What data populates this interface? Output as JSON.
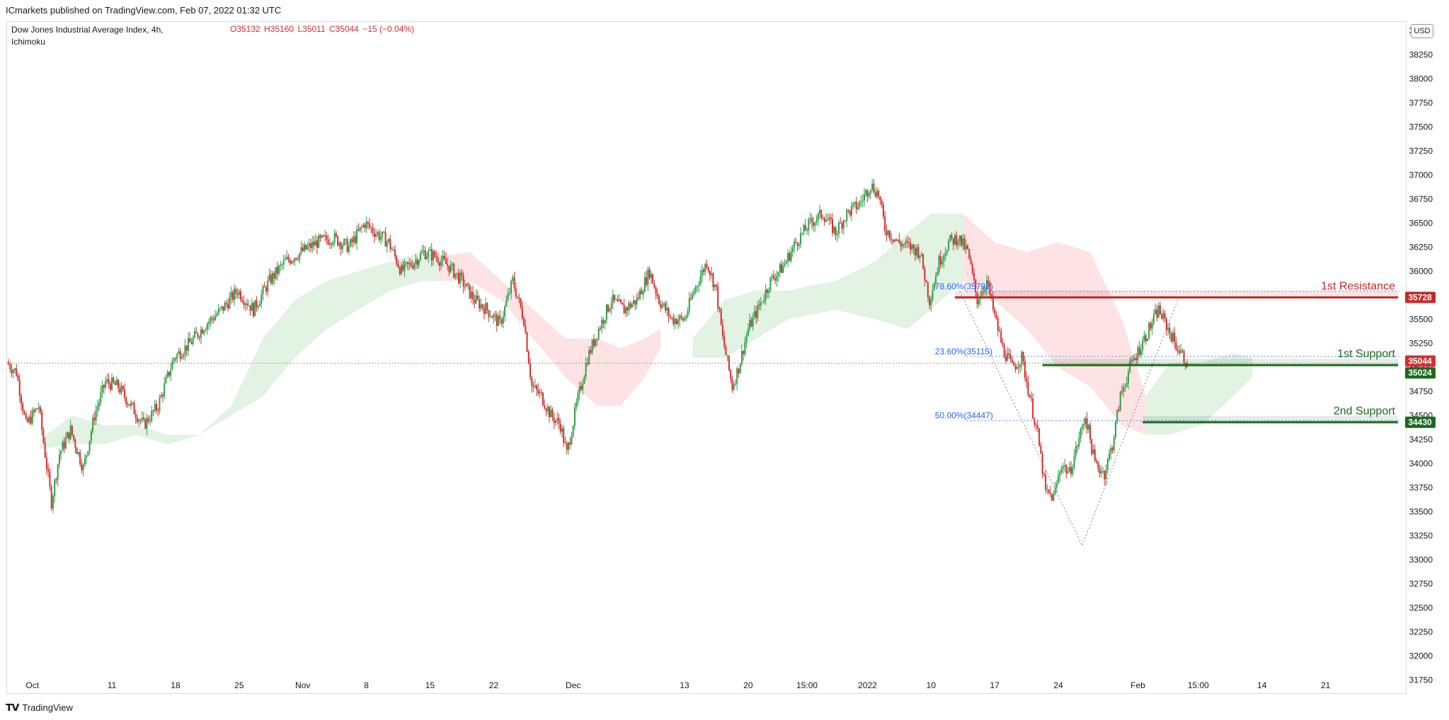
{
  "publisher": "ICmarkets published on TradingView.com, Feb 07, 2022 01:32 UTC",
  "legend": {
    "symbol_line": "Dow Jones Industrial Average Index, 4h,",
    "indicator": "Ichimoku",
    "ohlc": {
      "open": "O35132",
      "high": "H35160",
      "low": "L35011",
      "close": "C35044",
      "change": "−15 (−0.04%)"
    }
  },
  "currency": "USD",
  "footer": {
    "brand": "TradingView"
  },
  "colors": {
    "bull": "#26a69a",
    "bull_body": "#2e9e4a",
    "bear": "#d32f2f",
    "resistance": "#c62828",
    "support": "#1b6b1f",
    "cloud_bull": "#dff1e0",
    "cloud_bear": "#fde0e0",
    "fib": "#2962ff"
  },
  "chart_data": {
    "type": "candlestick",
    "timeframe": "4h",
    "y_axis": {
      "ticks": [
        31750,
        32000,
        32250,
        32500,
        32750,
        33000,
        33250,
        33500,
        33750,
        34000,
        34250,
        34500,
        34750,
        35000,
        35250,
        35500,
        35750,
        36000,
        36250,
        36500,
        36750,
        37000,
        37250,
        37500,
        37750,
        38000,
        38250,
        38500
      ],
      "range": [
        31650,
        38600
      ]
    },
    "x_axis": {
      "ticks": [
        {
          "label": "Oct",
          "bar": 15
        },
        {
          "label": "11",
          "bar": 65
        },
        {
          "label": "18",
          "bar": 105
        },
        {
          "label": "25",
          "bar": 145
        },
        {
          "label": "Nov",
          "bar": 185
        },
        {
          "label": "8",
          "bar": 225
        },
        {
          "label": "15",
          "bar": 265
        },
        {
          "label": "22",
          "bar": 305
        },
        {
          "label": "Dec",
          "bar": 355
        },
        {
          "label": "13",
          "bar": 425
        },
        {
          "label": "20",
          "bar": 465
        },
        {
          "label": "15:00",
          "bar": 502
        },
        {
          "label": "2022",
          "bar": 540
        },
        {
          "label": "10",
          "bar": 580
        },
        {
          "label": "17",
          "bar": 620
        },
        {
          "label": "24",
          "bar": 660
        },
        {
          "label": "Feb",
          "bar": 710
        },
        {
          "label": "15:00",
          "bar": 748
        },
        {
          "label": "14",
          "bar": 788
        },
        {
          "label": "21",
          "bar": 828
        }
      ],
      "total_bars": 870
    },
    "price_path": [
      [
        0,
        35050
      ],
      [
        6,
        34950
      ],
      [
        12,
        34400
      ],
      [
        20,
        34600
      ],
      [
        28,
        33600
      ],
      [
        33,
        34100
      ],
      [
        40,
        34350
      ],
      [
        48,
        33950
      ],
      [
        55,
        34500
      ],
      [
        62,
        34850
      ],
      [
        70,
        34800
      ],
      [
        78,
        34600
      ],
      [
        86,
        34400
      ],
      [
        95,
        34600
      ],
      [
        105,
        35100
      ],
      [
        115,
        35250
      ],
      [
        125,
        35450
      ],
      [
        135,
        35600
      ],
      [
        145,
        35800
      ],
      [
        155,
        35600
      ],
      [
        165,
        35900
      ],
      [
        175,
        36100
      ],
      [
        185,
        36200
      ],
      [
        195,
        36300
      ],
      [
        205,
        36350
      ],
      [
        215,
        36250
      ],
      [
        225,
        36500
      ],
      [
        232,
        36400
      ],
      [
        240,
        36300
      ],
      [
        248,
        36000
      ],
      [
        256,
        36100
      ],
      [
        262,
        36200
      ],
      [
        270,
        36150
      ],
      [
        278,
        36050
      ],
      [
        286,
        35900
      ],
      [
        294,
        35700
      ],
      [
        302,
        35600
      ],
      [
        310,
        35450
      ],
      [
        318,
        35900
      ],
      [
        325,
        35500
      ],
      [
        330,
        34800
      ],
      [
        336,
        34700
      ],
      [
        342,
        34500
      ],
      [
        348,
        34400
      ],
      [
        352,
        34100
      ],
      [
        358,
        34600
      ],
      [
        365,
        35100
      ],
      [
        372,
        35400
      ],
      [
        380,
        35700
      ],
      [
        388,
        35600
      ],
      [
        396,
        35700
      ],
      [
        404,
        36000
      ],
      [
        410,
        35700
      ],
      [
        418,
        35500
      ],
      [
        426,
        35500
      ],
      [
        432,
        35800
      ],
      [
        440,
        36100
      ],
      [
        446,
        35800
      ],
      [
        450,
        35300
      ],
      [
        456,
        34800
      ],
      [
        460,
        35000
      ],
      [
        466,
        35400
      ],
      [
        472,
        35600
      ],
      [
        480,
        35900
      ],
      [
        488,
        36050
      ],
      [
        496,
        36300
      ],
      [
        505,
        36500
      ],
      [
        513,
        36600
      ],
      [
        521,
        36400
      ],
      [
        528,
        36600
      ],
      [
        536,
        36700
      ],
      [
        543,
        36900
      ],
      [
        548,
        36800
      ],
      [
        552,
        36450
      ],
      [
        560,
        36300
      ],
      [
        568,
        36250
      ],
      [
        574,
        36200
      ],
      [
        580,
        35700
      ],
      [
        586,
        36100
      ],
      [
        592,
        36300
      ],
      [
        598,
        36350
      ],
      [
        604,
        36200
      ],
      [
        610,
        35700
      ],
      [
        616,
        35900
      ],
      [
        620,
        35600
      ],
      [
        626,
        35200
      ],
      [
        632,
        35000
      ],
      [
        638,
        35100
      ],
      [
        643,
        34700
      ],
      [
        648,
        34300
      ],
      [
        653,
        33700
      ],
      [
        658,
        33650
      ],
      [
        663,
        34000
      ],
      [
        668,
        33900
      ],
      [
        673,
        34200
      ],
      [
        678,
        34500
      ],
      [
        684,
        34000
      ],
      [
        690,
        33900
      ],
      [
        695,
        34200
      ],
      [
        700,
        34700
      ],
      [
        706,
        35000
      ],
      [
        712,
        35200
      ],
      [
        718,
        35400
      ],
      [
        724,
        35600
      ],
      [
        730,
        35400
      ],
      [
        736,
        35200
      ],
      [
        742,
        35044
      ]
    ],
    "cloud": [
      {
        "type": "bull",
        "path": [
          [
            20,
            34250
          ],
          [
            40,
            34500
          ],
          [
            60,
            34400
          ],
          [
            80,
            34400
          ],
          [
            100,
            34300
          ],
          [
            120,
            34300
          ],
          [
            140,
            34600
          ],
          [
            160,
            35300
          ],
          [
            180,
            35700
          ],
          [
            200,
            35900
          ],
          [
            220,
            36000
          ],
          [
            240,
            36100
          ],
          [
            260,
            36200
          ],
          [
            270,
            36150
          ]
        ],
        "lower": [
          [
            20,
            34150
          ],
          [
            40,
            34200
          ],
          [
            60,
            34200
          ],
          [
            80,
            34300
          ],
          [
            100,
            34200
          ],
          [
            120,
            34300
          ],
          [
            140,
            34500
          ],
          [
            160,
            34700
          ],
          [
            180,
            35100
          ],
          [
            200,
            35400
          ],
          [
            220,
            35600
          ],
          [
            240,
            35800
          ],
          [
            260,
            35900
          ],
          [
            270,
            35900
          ]
        ]
      },
      {
        "type": "bear",
        "path": [
          [
            270,
            36150
          ],
          [
            290,
            36200
          ],
          [
            310,
            35900
          ],
          [
            330,
            35600
          ],
          [
            350,
            35300
          ],
          [
            370,
            35300
          ],
          [
            385,
            35200
          ],
          [
            400,
            35300
          ],
          [
            410,
            35400
          ]
        ],
        "lower": [
          [
            270,
            35900
          ],
          [
            290,
            35900
          ],
          [
            310,
            35700
          ],
          [
            330,
            35300
          ],
          [
            350,
            34900
          ],
          [
            370,
            34600
          ],
          [
            385,
            34600
          ],
          [
            400,
            34900
          ],
          [
            410,
            35200
          ]
        ]
      },
      {
        "type": "bull",
        "path": [
          [
            430,
            35300
          ],
          [
            450,
            35700
          ],
          [
            470,
            35800
          ],
          [
            490,
            35800
          ],
          [
            520,
            35900
          ],
          [
            545,
            36100
          ],
          [
            565,
            36400
          ],
          [
            580,
            36600
          ],
          [
            600,
            36600
          ]
        ],
        "lower": [
          [
            430,
            35100
          ],
          [
            450,
            35100
          ],
          [
            470,
            35300
          ],
          [
            490,
            35500
          ],
          [
            520,
            35600
          ],
          [
            545,
            35500
          ],
          [
            565,
            35400
          ],
          [
            580,
            35600
          ],
          [
            600,
            35900
          ]
        ]
      },
      {
        "type": "bear",
        "path": [
          [
            600,
            36600
          ],
          [
            620,
            36300
          ],
          [
            640,
            36200
          ],
          [
            660,
            36300
          ],
          [
            680,
            36200
          ],
          [
            700,
            35500
          ],
          [
            715,
            34700
          ]
        ],
        "lower": [
          [
            600,
            35900
          ],
          [
            620,
            35700
          ],
          [
            640,
            35400
          ],
          [
            660,
            35000
          ],
          [
            680,
            34800
          ],
          [
            700,
            34400
          ],
          [
            715,
            34300
          ]
        ]
      },
      {
        "type": "bull",
        "path": [
          [
            715,
            34700
          ],
          [
            730,
            35050
          ],
          [
            750,
            35050
          ],
          [
            770,
            35150
          ],
          [
            782,
            35100
          ]
        ],
        "lower": [
          [
            715,
            34300
          ],
          [
            730,
            34300
          ],
          [
            750,
            34400
          ],
          [
            770,
            34700
          ],
          [
            782,
            34900
          ]
        ]
      }
    ],
    "levels": [
      {
        "name": "1st Resistance",
        "value": 35728,
        "label": "35728",
        "color": "#c62828",
        "start_bar": 595
      },
      {
        "name": "1st Support",
        "value": 35024,
        "label": "35024",
        "color": "#1b6b1f",
        "start_bar": 650
      },
      {
        "name": "2nd Support",
        "value": 34430,
        "label": "34430",
        "color": "#1b6b1f",
        "start_bar": 713
      }
    ],
    "current_price": {
      "value": 35044,
      "label": "35044"
    },
    "fib": [
      {
        "label": "78.60%(35792)",
        "value": 35792
      },
      {
        "label": "23.60%(35115)",
        "value": 35115
      },
      {
        "label": "50.00%(34447)",
        "value": 34447
      }
    ],
    "fib_swing": {
      "high_bar": 598,
      "low_bar": 675,
      "low": 33150,
      "end_bar": 735,
      "end": 35700
    }
  }
}
